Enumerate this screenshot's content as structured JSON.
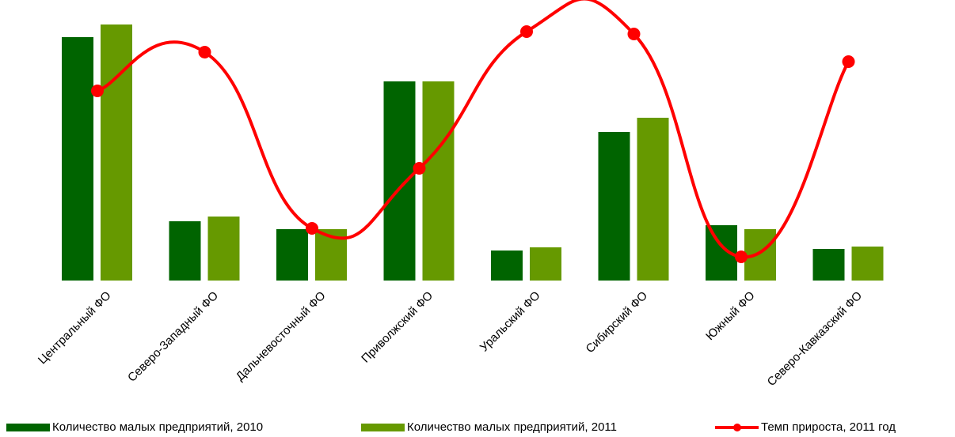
{
  "chart_data": {
    "type": "bar-line",
    "categories": [
      "Центральный ФО",
      "Северо-Западный ФО",
      "Дальневосточный ФО",
      "Приволжский ФО",
      "Уральский ФО",
      "Сибирский ФО",
      "Южный ФО",
      "Северо-Кавказский ФО"
    ],
    "series": [
      {
        "name": "Количество малых предприятий, 2010",
        "color": "#006400",
        "type": "bar",
        "values": [
          308,
          75,
          65,
          252,
          38,
          188,
          70,
          40
        ]
      },
      {
        "name": "Количество малых предприятий, 2011",
        "color": "#669900",
        "type": "bar",
        "values": [
          324,
          81,
          65,
          252,
          42,
          206,
          65,
          43
        ]
      },
      {
        "name": "Темп прироста, 2011 год",
        "color": "#ff0000",
        "type": "line",
        "axis": "y2",
        "values": [
          240,
          289,
          66,
          142,
          315,
          312,
          30,
          277
        ]
      }
    ],
    "ylim": [
      0,
      350
    ],
    "y2lim": [
      0,
      350
    ],
    "legend": "bottom"
  }
}
